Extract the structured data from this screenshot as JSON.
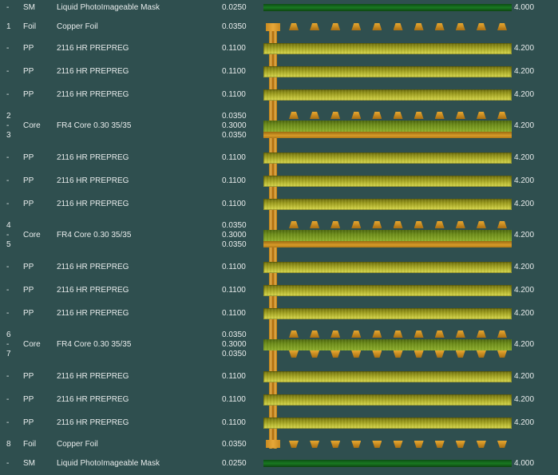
{
  "colors": {
    "background": "#2f4f4f",
    "text": "#e8ecec",
    "solder_mask": "#1a7a22",
    "prepreg": "#c4c43a",
    "core": "#8fb02c",
    "copper": "#d89a28"
  },
  "stackup": {
    "rows": [
      {
        "layer": "-",
        "type": "SM",
        "material": "Liquid PhotoImageable Mask",
        "thickness": "0.0250",
        "dk": "4.000"
      },
      {
        "layer": "1",
        "type": "Foil",
        "material": "Copper Foil",
        "thickness": "0.0350",
        "dk": ""
      },
      {
        "layer": "-",
        "type": "PP",
        "material": "2116 HR PREPREG",
        "thickness": "0.1100",
        "dk": "4.200"
      },
      {
        "layer": "-",
        "type": "PP",
        "material": "2116 HR PREPREG",
        "thickness": "0.1100",
        "dk": "4.200"
      },
      {
        "layer": "-",
        "type": "PP",
        "material": "2116 HR PREPREG",
        "thickness": "0.1100",
        "dk": "4.200"
      },
      {
        "layer_top": "2",
        "layer": "-",
        "layer_bottom": "3",
        "type": "Core",
        "material": "FR4 Core 0.30 35/35",
        "thickness_top": "0.0350",
        "thickness": "0.3000",
        "thickness_bottom": "0.0350",
        "dk": "4.200"
      },
      {
        "layer": "-",
        "type": "PP",
        "material": "2116 HR PREPREG",
        "thickness": "0.1100",
        "dk": "4.200"
      },
      {
        "layer": "-",
        "type": "PP",
        "material": "2116 HR PREPREG",
        "thickness": "0.1100",
        "dk": "4.200"
      },
      {
        "layer": "-",
        "type": "PP",
        "material": "2116 HR PREPREG",
        "thickness": "0.1100",
        "dk": "4.200"
      },
      {
        "layer_top": "4",
        "layer": "-",
        "layer_bottom": "5",
        "type": "Core",
        "material": "FR4 Core 0.30 35/35",
        "thickness_top": "0.0350",
        "thickness": "0.3000",
        "thickness_bottom": "0.0350",
        "dk": "4.200"
      },
      {
        "layer": "-",
        "type": "PP",
        "material": "2116 HR PREPREG",
        "thickness": "0.1100",
        "dk": "4.200"
      },
      {
        "layer": "-",
        "type": "PP",
        "material": "2116 HR PREPREG",
        "thickness": "0.1100",
        "dk": "4.200"
      },
      {
        "layer": "-",
        "type": "PP",
        "material": "2116 HR PREPREG",
        "thickness": "0.1100",
        "dk": "4.200"
      },
      {
        "layer_top": "6",
        "layer": "-",
        "layer_bottom": "7",
        "type": "Core",
        "material": "FR4 Core 0.30 35/35",
        "thickness_top": "0.0350",
        "thickness": "0.3000",
        "thickness_bottom": "0.0350",
        "dk": "4.200"
      },
      {
        "layer": "-",
        "type": "PP",
        "material": "2116 HR PREPREG",
        "thickness": "0.1100",
        "dk": "4.200"
      },
      {
        "layer": "-",
        "type": "PP",
        "material": "2116 HR PREPREG",
        "thickness": "0.1100",
        "dk": "4.200"
      },
      {
        "layer": "-",
        "type": "PP",
        "material": "2116 HR PREPREG",
        "thickness": "0.1100",
        "dk": "4.200"
      },
      {
        "layer": "8",
        "type": "Foil",
        "material": "Copper Foil",
        "thickness": "0.0350",
        "dk": ""
      },
      {
        "layer": "-",
        "type": "SM",
        "material": "Liquid PhotoImageable Mask",
        "thickness": "0.0250",
        "dk": "4.000"
      }
    ]
  },
  "graphics": {
    "pads_per_row": 11,
    "via_icon": "through-hole-via-icon",
    "pad_icon": "copper-pad-icon"
  }
}
